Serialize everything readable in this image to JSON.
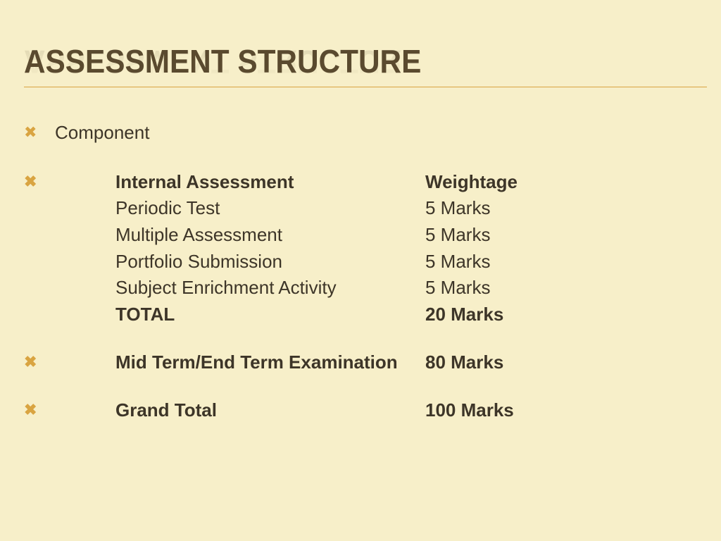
{
  "title": "ASSESSMENT STRUCTURE",
  "colors": {
    "background": "#f7efc9",
    "title_text": "#5a4a2f",
    "accent": "#d9a441",
    "body_text": "#3d3528"
  },
  "typography": {
    "title_fontsize": 46,
    "title_weight": 900,
    "body_fontsize": 26
  },
  "content": {
    "component_label": "Component",
    "headers": {
      "left": "Internal Assessment",
      "right": "Weightage"
    },
    "items": [
      {
        "label": "Periodic Test",
        "value": "5 Marks"
      },
      {
        "label": "Multiple Assessment",
        "value": "5 Marks"
      },
      {
        "label": "Portfolio Submission",
        "value": "5 Marks"
      },
      {
        "label": "Subject Enrichment Activity",
        "value": "5 Marks"
      }
    ],
    "subtotal": {
      "label": "TOTAL",
      "value": "20 Marks"
    },
    "exam": {
      "label": "Mid Term/End Term Examination",
      "value": "80 Marks"
    },
    "grand": {
      "label": "Grand Total",
      "value": "100 Marks"
    }
  }
}
